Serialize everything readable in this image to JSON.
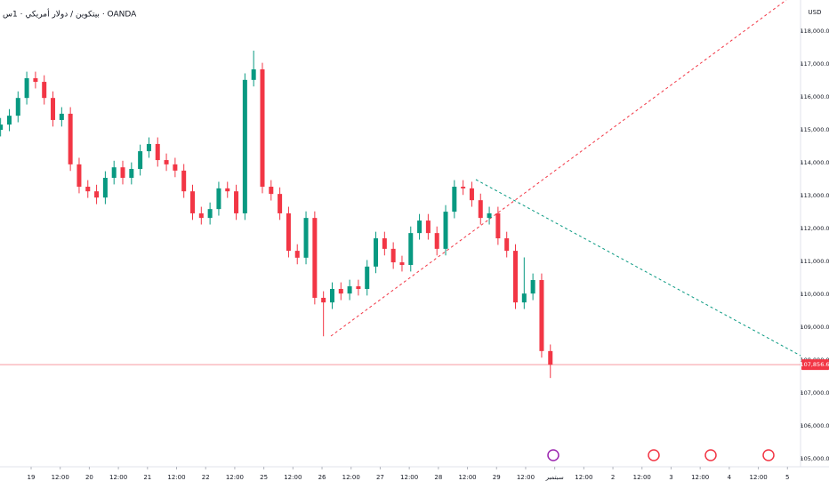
{
  "chart_data": {
    "type": "candlestick",
    "title": "بيتكوين / دولار أمريكي · 1س · OANDA",
    "currency": "USD",
    "up_color": "#089981",
    "down_color": "#f23645",
    "x": [
      -0.05,
      0.25,
      0.55,
      0.85,
      1.15,
      1.45,
      1.75,
      2.05,
      2.35,
      2.65,
      2.95,
      3.25,
      3.55,
      3.85,
      4.15,
      4.45,
      4.75,
      5.05,
      5.35,
      5.65,
      5.95,
      6.25,
      6.55,
      6.85,
      7.15,
      7.45,
      7.75,
      8.05,
      8.35,
      8.65,
      8.95,
      9.25,
      9.55,
      9.85,
      10.15,
      10.45,
      10.75,
      11.05,
      11.35,
      11.65,
      11.95,
      12.25,
      12.55,
      12.85,
      13.15,
      13.45,
      13.75,
      14.05,
      14.35,
      14.65,
      14.95,
      15.25,
      15.55,
      15.85,
      16.15,
      16.45,
      16.75,
      17.05,
      17.35,
      17.65,
      17.95,
      18.25,
      18.55,
      18.85
    ],
    "open": [
      115000,
      115160,
      115430,
      115970,
      116570,
      116460,
      115970,
      115300,
      115490,
      113950,
      113270,
      113130,
      112940,
      113540,
      113860,
      113540,
      113810,
      114350,
      114570,
      114080,
      113950,
      113760,
      113130,
      112460,
      112320,
      112590,
      113220,
      113130,
      112460,
      116520,
      116840,
      113270,
      113050,
      112460,
      111320,
      111110,
      112320,
      109890,
      109750,
      110160,
      110020,
      110240,
      110160,
      110840,
      111700,
      111380,
      110970,
      110890,
      111860,
      112240,
      111860,
      111380,
      112510,
      113270,
      113220,
      112860,
      112320,
      112460,
      111700,
      111320,
      109750,
      110020,
      110430,
      108270
    ],
    "high": [
      115360,
      115630,
      116170,
      116770,
      116770,
      116660,
      116170,
      115690,
      115690,
      114150,
      113470,
      113330,
      113740,
      114060,
      114060,
      114010,
      114550,
      114770,
      114770,
      114280,
      114150,
      113960,
      113330,
      112660,
      112790,
      113420,
      113420,
      113330,
      116720,
      117410,
      117040,
      113470,
      113250,
      112660,
      111520,
      112520,
      112520,
      110090,
      110360,
      110360,
      110440,
      110440,
      111040,
      111900,
      111900,
      111580,
      111170,
      112060,
      112440,
      112440,
      112060,
      112710,
      113470,
      113470,
      113420,
      113060,
      112660,
      112660,
      111900,
      111520,
      111120,
      110630,
      110630,
      108470
    ],
    "low": [
      114800,
      114960,
      115230,
      115770,
      116260,
      115770,
      115100,
      115100,
      113750,
      113070,
      112930,
      112740,
      112740,
      113340,
      113340,
      113340,
      113610,
      114150,
      113880,
      113750,
      113560,
      112930,
      112260,
      112120,
      112120,
      112390,
      112930,
      112260,
      112260,
      116320,
      113070,
      112850,
      112260,
      111120,
      110910,
      110910,
      109690,
      108720,
      109550,
      109820,
      109820,
      109960,
      109960,
      110640,
      111180,
      110770,
      110690,
      110690,
      111660,
      111660,
      111180,
      111180,
      112310,
      113020,
      112660,
      112120,
      112120,
      111500,
      111120,
      109550,
      109550,
      109820,
      108070,
      107450
    ],
    "close": [
      115160,
      115430,
      115970,
      116570,
      116460,
      115970,
      115300,
      115490,
      113950,
      113270,
      113130,
      112940,
      113540,
      113860,
      113540,
      113810,
      114350,
      114570,
      114080,
      113950,
      113760,
      113130,
      112460,
      112320,
      112590,
      113220,
      113130,
      112460,
      116520,
      116840,
      113270,
      113050,
      112460,
      111320,
      111110,
      112320,
      109890,
      109750,
      110160,
      110020,
      110240,
      110160,
      110840,
      111700,
      111380,
      110970,
      110890,
      111860,
      112240,
      111860,
      111380,
      112510,
      113270,
      113220,
      112860,
      112320,
      112460,
      111700,
      111320,
      109750,
      110020,
      110430,
      108270,
      107856.6
    ],
    "last_price": {
      "value": 107856.6,
      "label": "107,856.6"
    },
    "xlim": [
      -0.07,
      27.45
    ],
    "ylim": [
      104750,
      118950
    ],
    "yticks": [
      {
        "value": 105000,
        "label": "105,000.0"
      },
      {
        "value": 106000,
        "label": "106,000.0"
      },
      {
        "value": 107000,
        "label": "107,000.0"
      },
      {
        "value": 108000,
        "label": "108,000.0"
      },
      {
        "value": 109000,
        "label": "109,000.0"
      },
      {
        "value": 110000,
        "label": "110,000.0"
      },
      {
        "value": 111000,
        "label": "111,000.0"
      },
      {
        "value": 112000,
        "label": "112,000.0"
      },
      {
        "value": 113000,
        "label": "113,000.0"
      },
      {
        "value": 114000,
        "label": "114,000.0"
      },
      {
        "value": 115000,
        "label": "115,000.0"
      },
      {
        "value": 116000,
        "label": "116,000.0"
      },
      {
        "value": 117000,
        "label": "117,000.0"
      },
      {
        "value": 118000,
        "label": "118,000.0"
      }
    ],
    "xticks": [
      {
        "value": 1,
        "label": "19"
      },
      {
        "value": 2,
        "label": "12:00"
      },
      {
        "value": 3,
        "label": "20"
      },
      {
        "value": 4,
        "label": "12:00"
      },
      {
        "value": 5,
        "label": "21"
      },
      {
        "value": 6,
        "label": "12:00"
      },
      {
        "value": 7,
        "label": "22"
      },
      {
        "value": 8,
        "label": "12:00"
      },
      {
        "value": 9,
        "label": "25"
      },
      {
        "value": 10,
        "label": "12:00"
      },
      {
        "value": 11,
        "label": "26"
      },
      {
        "value": 12,
        "label": "12:00"
      },
      {
        "value": 13,
        "label": "27"
      },
      {
        "value": 14,
        "label": "12:00"
      },
      {
        "value": 15,
        "label": "28"
      },
      {
        "value": 16,
        "label": "12:00"
      },
      {
        "value": 17,
        "label": "29"
      },
      {
        "value": 18,
        "label": "12:00"
      },
      {
        "value": 19,
        "label": "سبتمبر"
      },
      {
        "value": 20,
        "label": "12:00"
      },
      {
        "value": 21,
        "label": "2"
      },
      {
        "value": 22,
        "label": "12:00"
      },
      {
        "value": 23,
        "label": "3"
      },
      {
        "value": 24,
        "label": "12:00"
      },
      {
        "value": 25,
        "label": "4"
      },
      {
        "value": 26,
        "label": "12:00"
      },
      {
        "value": 27,
        "label": "5"
      }
    ]
  }
}
